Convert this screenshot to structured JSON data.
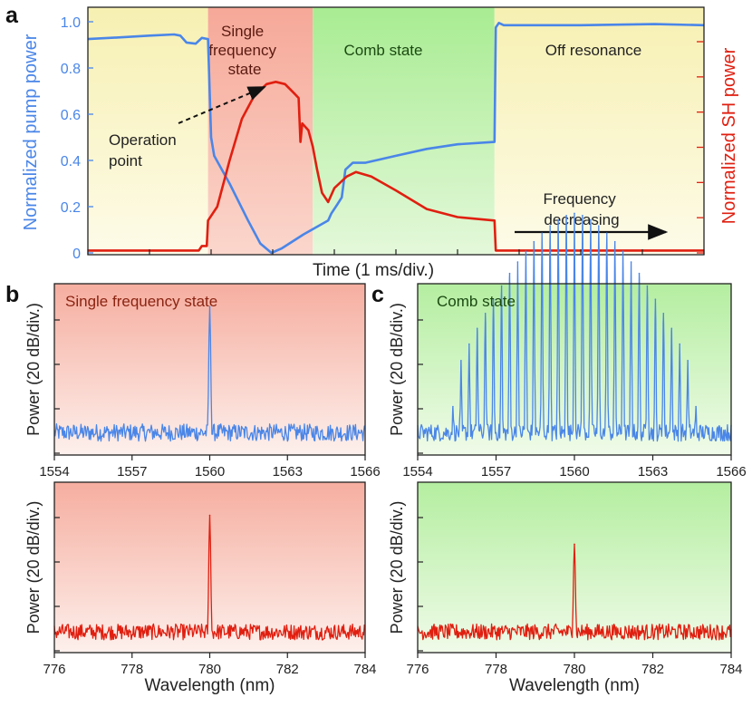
{
  "panel_letters": {
    "a": "a",
    "b": "b",
    "c": "c"
  },
  "colors": {
    "pump": "#4a86e8",
    "sh": "#e01f10",
    "yellow_region": "#faf3c0",
    "red_region": "#f6aea0",
    "green_region": "#b4eea0",
    "axis": "#222222"
  },
  "chart_data": [
    {
      "id": "a",
      "type": "line",
      "xlabel": "Time (1 ms/div.)",
      "ylabel_left": "Normalized pump power",
      "ylabel_right": "Normalized SH power",
      "yticks_left": [
        "0",
        "0.2",
        "0.4",
        "0.6",
        "0.8",
        "1.0"
      ],
      "ylim": [
        0,
        1.05
      ],
      "xlim": [
        0,
        10
      ],
      "regions": [
        {
          "label": "",
          "start": 0,
          "end": 1.95,
          "color": "yellow"
        },
        {
          "label": "Single frequency state",
          "start": 1.95,
          "end": 3.65,
          "color": "red"
        },
        {
          "label": "Comb state",
          "start": 3.65,
          "end": 6.6,
          "color": "green"
        },
        {
          "label": "Off resonance",
          "start": 6.6,
          "end": 10,
          "color": "yellow"
        }
      ],
      "annotations": {
        "operation_point": "Operation point",
        "frequency": "Frequency decreasing"
      },
      "series": [
        {
          "name": "Normalized pump power",
          "color": "pump",
          "points": [
            [
              0,
              0.925
            ],
            [
              0.5,
              0.932
            ],
            [
              1.0,
              0.94
            ],
            [
              1.4,
              0.945
            ],
            [
              1.5,
              0.94
            ],
            [
              1.6,
              0.91
            ],
            [
              1.75,
              0.905
            ],
            [
              1.85,
              0.93
            ],
            [
              1.95,
              0.925
            ],
            [
              2.0,
              0.5
            ],
            [
              2.05,
              0.42
            ],
            [
              2.3,
              0.3
            ],
            [
              2.6,
              0.14
            ],
            [
              2.8,
              0.04
            ],
            [
              2.98,
              0.0
            ],
            [
              3.15,
              0.02
            ],
            [
              3.5,
              0.08
            ],
            [
              3.9,
              0.14
            ],
            [
              3.95,
              0.17
            ],
            [
              4.05,
              0.21
            ],
            [
              4.12,
              0.24
            ],
            [
              4.18,
              0.36
            ],
            [
              4.3,
              0.39
            ],
            [
              4.5,
              0.39
            ],
            [
              5.0,
              0.42
            ],
            [
              5.5,
              0.45
            ],
            [
              6.0,
              0.47
            ],
            [
              6.6,
              0.48
            ],
            [
              6.62,
              0.975
            ],
            [
              6.67,
              0.995
            ],
            [
              6.75,
              0.985
            ],
            [
              8.0,
              0.985
            ],
            [
              9.2,
              0.99
            ],
            [
              10.0,
              0.985
            ]
          ]
        },
        {
          "name": "Normalized SH power",
          "color": "sh",
          "points": [
            [
              0,
              0.01
            ],
            [
              1.8,
              0.01
            ],
            [
              1.85,
              0.03
            ],
            [
              1.93,
              0.03
            ],
            [
              1.95,
              0.14
            ],
            [
              2.1,
              0.2
            ],
            [
              2.3,
              0.4
            ],
            [
              2.5,
              0.58
            ],
            [
              2.7,
              0.68
            ],
            [
              2.9,
              0.73
            ],
            [
              3.05,
              0.74
            ],
            [
              3.2,
              0.73
            ],
            [
              3.35,
              0.69
            ],
            [
              3.42,
              0.67
            ],
            [
              3.45,
              0.48
            ],
            [
              3.48,
              0.56
            ],
            [
              3.58,
              0.53
            ],
            [
              3.65,
              0.46
            ],
            [
              3.72,
              0.36
            ],
            [
              3.8,
              0.26
            ],
            [
              3.9,
              0.22
            ],
            [
              4.0,
              0.28
            ],
            [
              4.2,
              0.33
            ],
            [
              4.35,
              0.35
            ],
            [
              4.6,
              0.33
            ],
            [
              5.0,
              0.27
            ],
            [
              5.5,
              0.19
            ],
            [
              6.0,
              0.155
            ],
            [
              6.6,
              0.14
            ],
            [
              6.62,
              0.01
            ],
            [
              10.0,
              0.01
            ]
          ]
        }
      ]
    },
    {
      "id": "b_top",
      "type": "line",
      "title": "Single frequency state",
      "xlabel": "",
      "ylabel": "Power (20 dB/div.)",
      "xlim": [
        1554,
        1566
      ],
      "xticks": [
        "1554",
        "1557",
        "1560",
        "1563",
        "1566"
      ],
      "noise_floor_div": 0.6,
      "peaks": [
        {
          "x": 1560.0,
          "height_div": 3.3
        }
      ]
    },
    {
      "id": "b_bottom",
      "type": "line",
      "title": "",
      "xlabel": "Wavelength (nm)",
      "ylabel": "Power (20 dB/div.)",
      "xlim": [
        776,
        784
      ],
      "xticks": [
        "776",
        "778",
        "780",
        "782",
        "784"
      ],
      "noise_floor_div": 0.55,
      "peaks": [
        {
          "x": 780.0,
          "height_div": 3.05
        }
      ]
    },
    {
      "id": "c_top",
      "type": "line",
      "title": "Comb state",
      "xlabel": "",
      "ylabel": "Power (20 dB/div.)",
      "xlim": [
        1554,
        1566
      ],
      "xticks": [
        "1554",
        "1557",
        "1560",
        "1563",
        "1566"
      ],
      "noise_floor_div": 0.6,
      "comb": {
        "center": 1560.0,
        "spacing": 0.31,
        "half_count": 15,
        "center_height_div": 5.4,
        "edge_height_div": 1.7
      }
    },
    {
      "id": "c_bottom",
      "type": "line",
      "title": "",
      "xlabel": "Wavelength (nm)",
      "ylabel": "Power (20 dB/div.)",
      "xlim": [
        776,
        784
      ],
      "xticks": [
        "776",
        "778",
        "780",
        "782",
        "784"
      ],
      "noise_floor_div": 0.55,
      "peaks": [
        {
          "x": 780.0,
          "height_div": 2.4
        }
      ]
    }
  ]
}
